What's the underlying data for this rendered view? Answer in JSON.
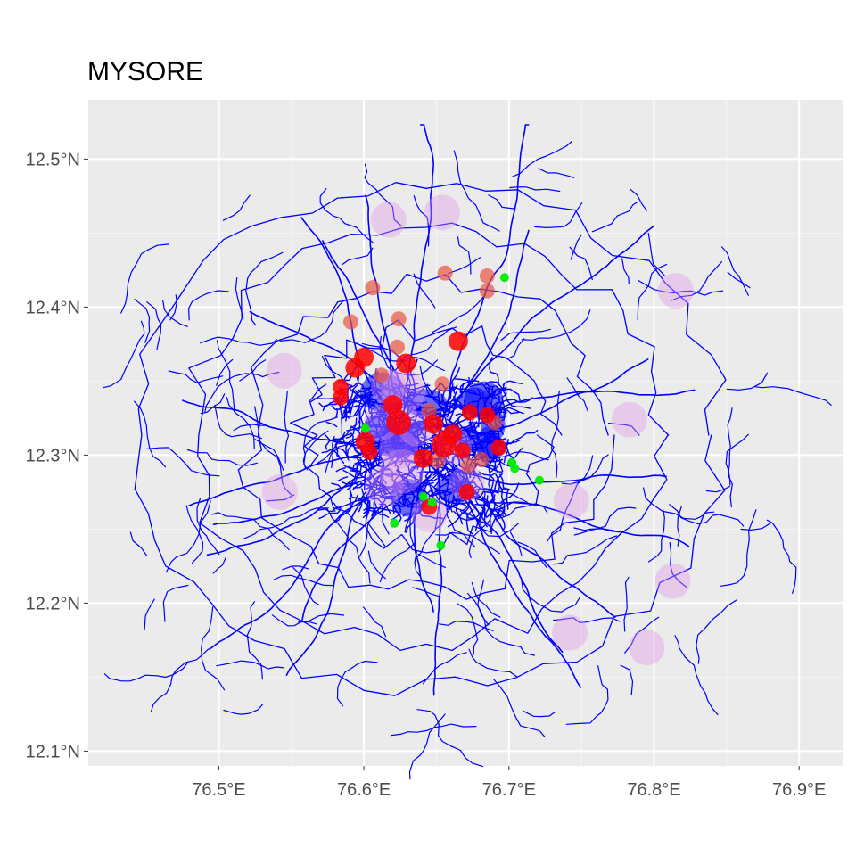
{
  "title": "MYSORE",
  "colors": {
    "panel_background": "#ebebeb",
    "grid_major": "#ffffff",
    "road_line": "#0000ff",
    "point_red": "#ff0000",
    "point_salmon": "#e8503a",
    "point_violet": "#e296e8",
    "point_green": "#00ee00",
    "tick_text": "#4d4d4d"
  },
  "chart_data": {
    "type": "scatter",
    "title": "MYSORE",
    "xlabel": "",
    "ylabel": "",
    "xlim": [
      76.41,
      76.93
    ],
    "ylim": [
      12.09,
      12.54
    ],
    "grid": true,
    "x_ticks": [
      {
        "value": 76.5,
        "label": "76.5°E"
      },
      {
        "value": 76.6,
        "label": "76.6°E"
      },
      {
        "value": 76.7,
        "label": "76.7°E"
      },
      {
        "value": 76.8,
        "label": "76.8°E"
      },
      {
        "value": 76.9,
        "label": "76.9°E"
      }
    ],
    "y_ticks": [
      {
        "value": 12.1,
        "label": "12.1°N"
      },
      {
        "value": 12.2,
        "label": "12.2°N"
      },
      {
        "value": 12.3,
        "label": "12.3°N"
      },
      {
        "value": 12.4,
        "label": "12.4°N"
      },
      {
        "value": 12.5,
        "label": "12.5°N"
      }
    ],
    "road_network": {
      "color": "#0000ff",
      "extent": {
        "lon": [
          76.44,
          76.9
        ],
        "lat": [
          12.11,
          12.5
        ]
      },
      "dense_core": {
        "lon": [
          76.58,
          76.7
        ],
        "lat": [
          12.26,
          12.35
        ]
      }
    },
    "series": [
      {
        "color": "#e296e8",
        "points": [
          {
            "x": 76.617,
            "y": 12.459,
            "size": 3
          },
          {
            "x": 76.654,
            "y": 12.464,
            "size": 3
          },
          {
            "x": 76.815,
            "y": 12.411,
            "size": 3
          },
          {
            "x": 76.545,
            "y": 12.357,
            "size": 3
          },
          {
            "x": 76.783,
            "y": 12.324,
            "size": 3
          },
          {
            "x": 76.542,
            "y": 12.275,
            "size": 3
          },
          {
            "x": 76.743,
            "y": 12.269,
            "size": 3
          },
          {
            "x": 76.813,
            "y": 12.215,
            "size": 3
          },
          {
            "x": 76.742,
            "y": 12.18,
            "size": 3
          },
          {
            "x": 76.795,
            "y": 12.17,
            "size": 3
          },
          {
            "x": 76.627,
            "y": 12.343,
            "size": 5
          },
          {
            "x": 76.624,
            "y": 12.304,
            "size": 4
          },
          {
            "x": 76.626,
            "y": 12.289,
            "size": 5
          },
          {
            "x": 76.614,
            "y": 12.279,
            "size": 4
          },
          {
            "x": 76.645,
            "y": 12.26,
            "size": 3
          },
          {
            "x": 76.636,
            "y": 12.318,
            "size": 3
          },
          {
            "x": 76.662,
            "y": 12.306,
            "size": 3
          },
          {
            "x": 76.671,
            "y": 12.281,
            "size": 3
          },
          {
            "x": 76.617,
            "y": 12.346,
            "size": 3
          },
          {
            "x": 76.612,
            "y": 12.322,
            "size": 3
          }
        ]
      },
      {
        "color": "#e8503a",
        "points": [
          {
            "x": 76.606,
            "y": 12.413,
            "size": 1
          },
          {
            "x": 76.591,
            "y": 12.39,
            "size": 1
          },
          {
            "x": 76.624,
            "y": 12.392,
            "size": 1
          },
          {
            "x": 76.656,
            "y": 12.423,
            "size": 1
          },
          {
            "x": 76.685,
            "y": 12.421,
            "size": 1
          },
          {
            "x": 76.685,
            "y": 12.411,
            "size": 1
          },
          {
            "x": 76.623,
            "y": 12.373,
            "size": 1
          },
          {
            "x": 76.654,
            "y": 12.348,
            "size": 1
          },
          {
            "x": 76.612,
            "y": 12.354,
            "size": 1
          },
          {
            "x": 76.645,
            "y": 12.33,
            "size": 1
          },
          {
            "x": 76.681,
            "y": 12.297,
            "size": 1
          },
          {
            "x": 76.672,
            "y": 12.293,
            "size": 1
          },
          {
            "x": 76.651,
            "y": 12.296,
            "size": 1
          },
          {
            "x": 76.69,
            "y": 12.322,
            "size": 1
          }
        ]
      },
      {
        "color": "#ff0000",
        "points": [
          {
            "x": 76.6,
            "y": 12.366,
            "size": 2
          },
          {
            "x": 76.594,
            "y": 12.359,
            "size": 2
          },
          {
            "x": 76.584,
            "y": 12.346,
            "size": 1
          },
          {
            "x": 76.584,
            "y": 12.339,
            "size": 1
          },
          {
            "x": 76.629,
            "y": 12.362,
            "size": 2
          },
          {
            "x": 76.665,
            "y": 12.377,
            "size": 2
          },
          {
            "x": 76.62,
            "y": 12.334,
            "size": 2
          },
          {
            "x": 76.624,
            "y": 12.322,
            "size": 3
          },
          {
            "x": 76.648,
            "y": 12.321,
            "size": 2
          },
          {
            "x": 76.655,
            "y": 12.307,
            "size": 3
          },
          {
            "x": 76.661,
            "y": 12.314,
            "size": 2
          },
          {
            "x": 76.673,
            "y": 12.329,
            "size": 1
          },
          {
            "x": 76.685,
            "y": 12.327,
            "size": 1
          },
          {
            "x": 76.693,
            "y": 12.305,
            "size": 1
          },
          {
            "x": 76.601,
            "y": 12.309,
            "size": 2
          },
          {
            "x": 76.604,
            "y": 12.302,
            "size": 1
          },
          {
            "x": 76.671,
            "y": 12.275,
            "size": 1
          },
          {
            "x": 76.645,
            "y": 12.265,
            "size": 1
          },
          {
            "x": 76.641,
            "y": 12.298,
            "size": 2
          },
          {
            "x": 76.668,
            "y": 12.303,
            "size": 1
          }
        ]
      },
      {
        "color": "#00ee00",
        "points": [
          {
            "x": 76.697,
            "y": 12.42,
            "size": 0
          },
          {
            "x": 76.601,
            "y": 12.318,
            "size": 0
          },
          {
            "x": 76.702,
            "y": 12.295,
            "size": 0
          },
          {
            "x": 76.704,
            "y": 12.291,
            "size": 0
          },
          {
            "x": 76.721,
            "y": 12.283,
            "size": 0
          },
          {
            "x": 76.641,
            "y": 12.272,
            "size": 0
          },
          {
            "x": 76.647,
            "y": 12.268,
            "size": 0
          },
          {
            "x": 76.621,
            "y": 12.254,
            "size": 0
          },
          {
            "x": 76.653,
            "y": 12.239,
            "size": 0
          }
        ]
      }
    ]
  }
}
